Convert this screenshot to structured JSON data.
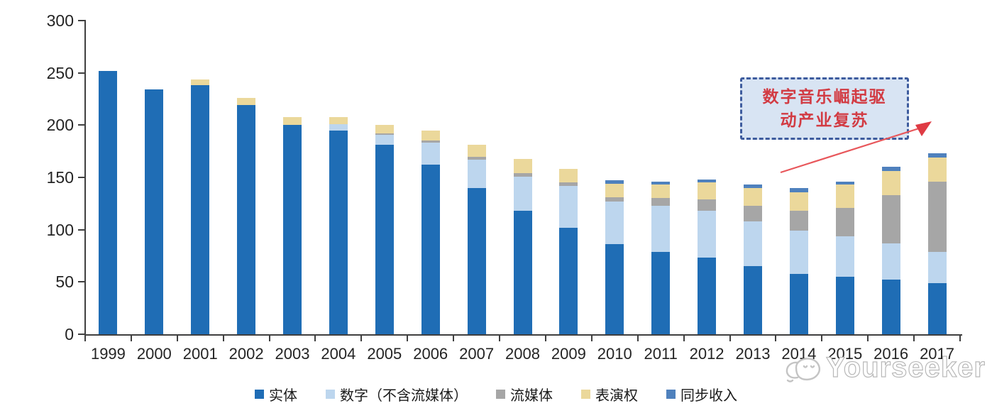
{
  "chart_data": {
    "type": "bar",
    "stacked": true,
    "categories": [
      "1999",
      "2000",
      "2001",
      "2002",
      "2003",
      "2004",
      "2005",
      "2006",
      "2007",
      "2008",
      "2009",
      "2010",
      "2011",
      "2012",
      "2013",
      "2014",
      "2015",
      "2016",
      "2017"
    ],
    "series": [
      {
        "name": "实体",
        "color": "#1f6db5",
        "values": [
          252,
          234,
          238,
          219,
          200,
          195,
          181,
          162,
          140,
          118,
          102,
          86,
          79,
          73,
          65,
          58,
          55,
          52,
          49
        ]
      },
      {
        "name": "数字（不含流媒体）",
        "color": "#bdd6ee",
        "values": [
          0,
          0,
          0,
          0,
          0,
          6,
          10,
          21,
          27,
          33,
          40,
          41,
          44,
          45,
          43,
          41,
          39,
          35,
          30
        ]
      },
      {
        "name": "流媒体",
        "color": "#a6a6a6",
        "values": [
          0,
          0,
          0,
          0,
          0,
          0,
          1,
          2,
          3,
          3,
          3,
          4,
          7,
          11,
          15,
          19,
          27,
          46,
          67
        ]
      },
      {
        "name": "表演权",
        "color": "#ebd89b",
        "values": [
          0,
          0,
          6,
          7,
          8,
          7,
          8,
          10,
          11,
          14,
          13,
          13,
          13,
          16,
          17,
          18,
          22,
          23,
          23
        ]
      },
      {
        "name": "同步收入",
        "color": "#4f81bd",
        "values": [
          0,
          0,
          0,
          0,
          0,
          0,
          0,
          0,
          0,
          0,
          0,
          3,
          3,
          3,
          3,
          4,
          3,
          4,
          4
        ]
      }
    ],
    "ylim": [
      0,
      300
    ],
    "y_ticks": [
      0,
      50,
      100,
      150,
      200,
      250,
      300
    ],
    "grid": false,
    "legend_position": "bottom"
  },
  "annotation": {
    "line1": "数字音乐崛起驱",
    "line2": "动产业复苏",
    "text_color": "#d23b43",
    "box_fill": "#d8e4f3",
    "box_border": "#3e5c9e",
    "arrow_color": "#e4454d"
  },
  "watermark": {
    "text": "Yourseeker"
  }
}
